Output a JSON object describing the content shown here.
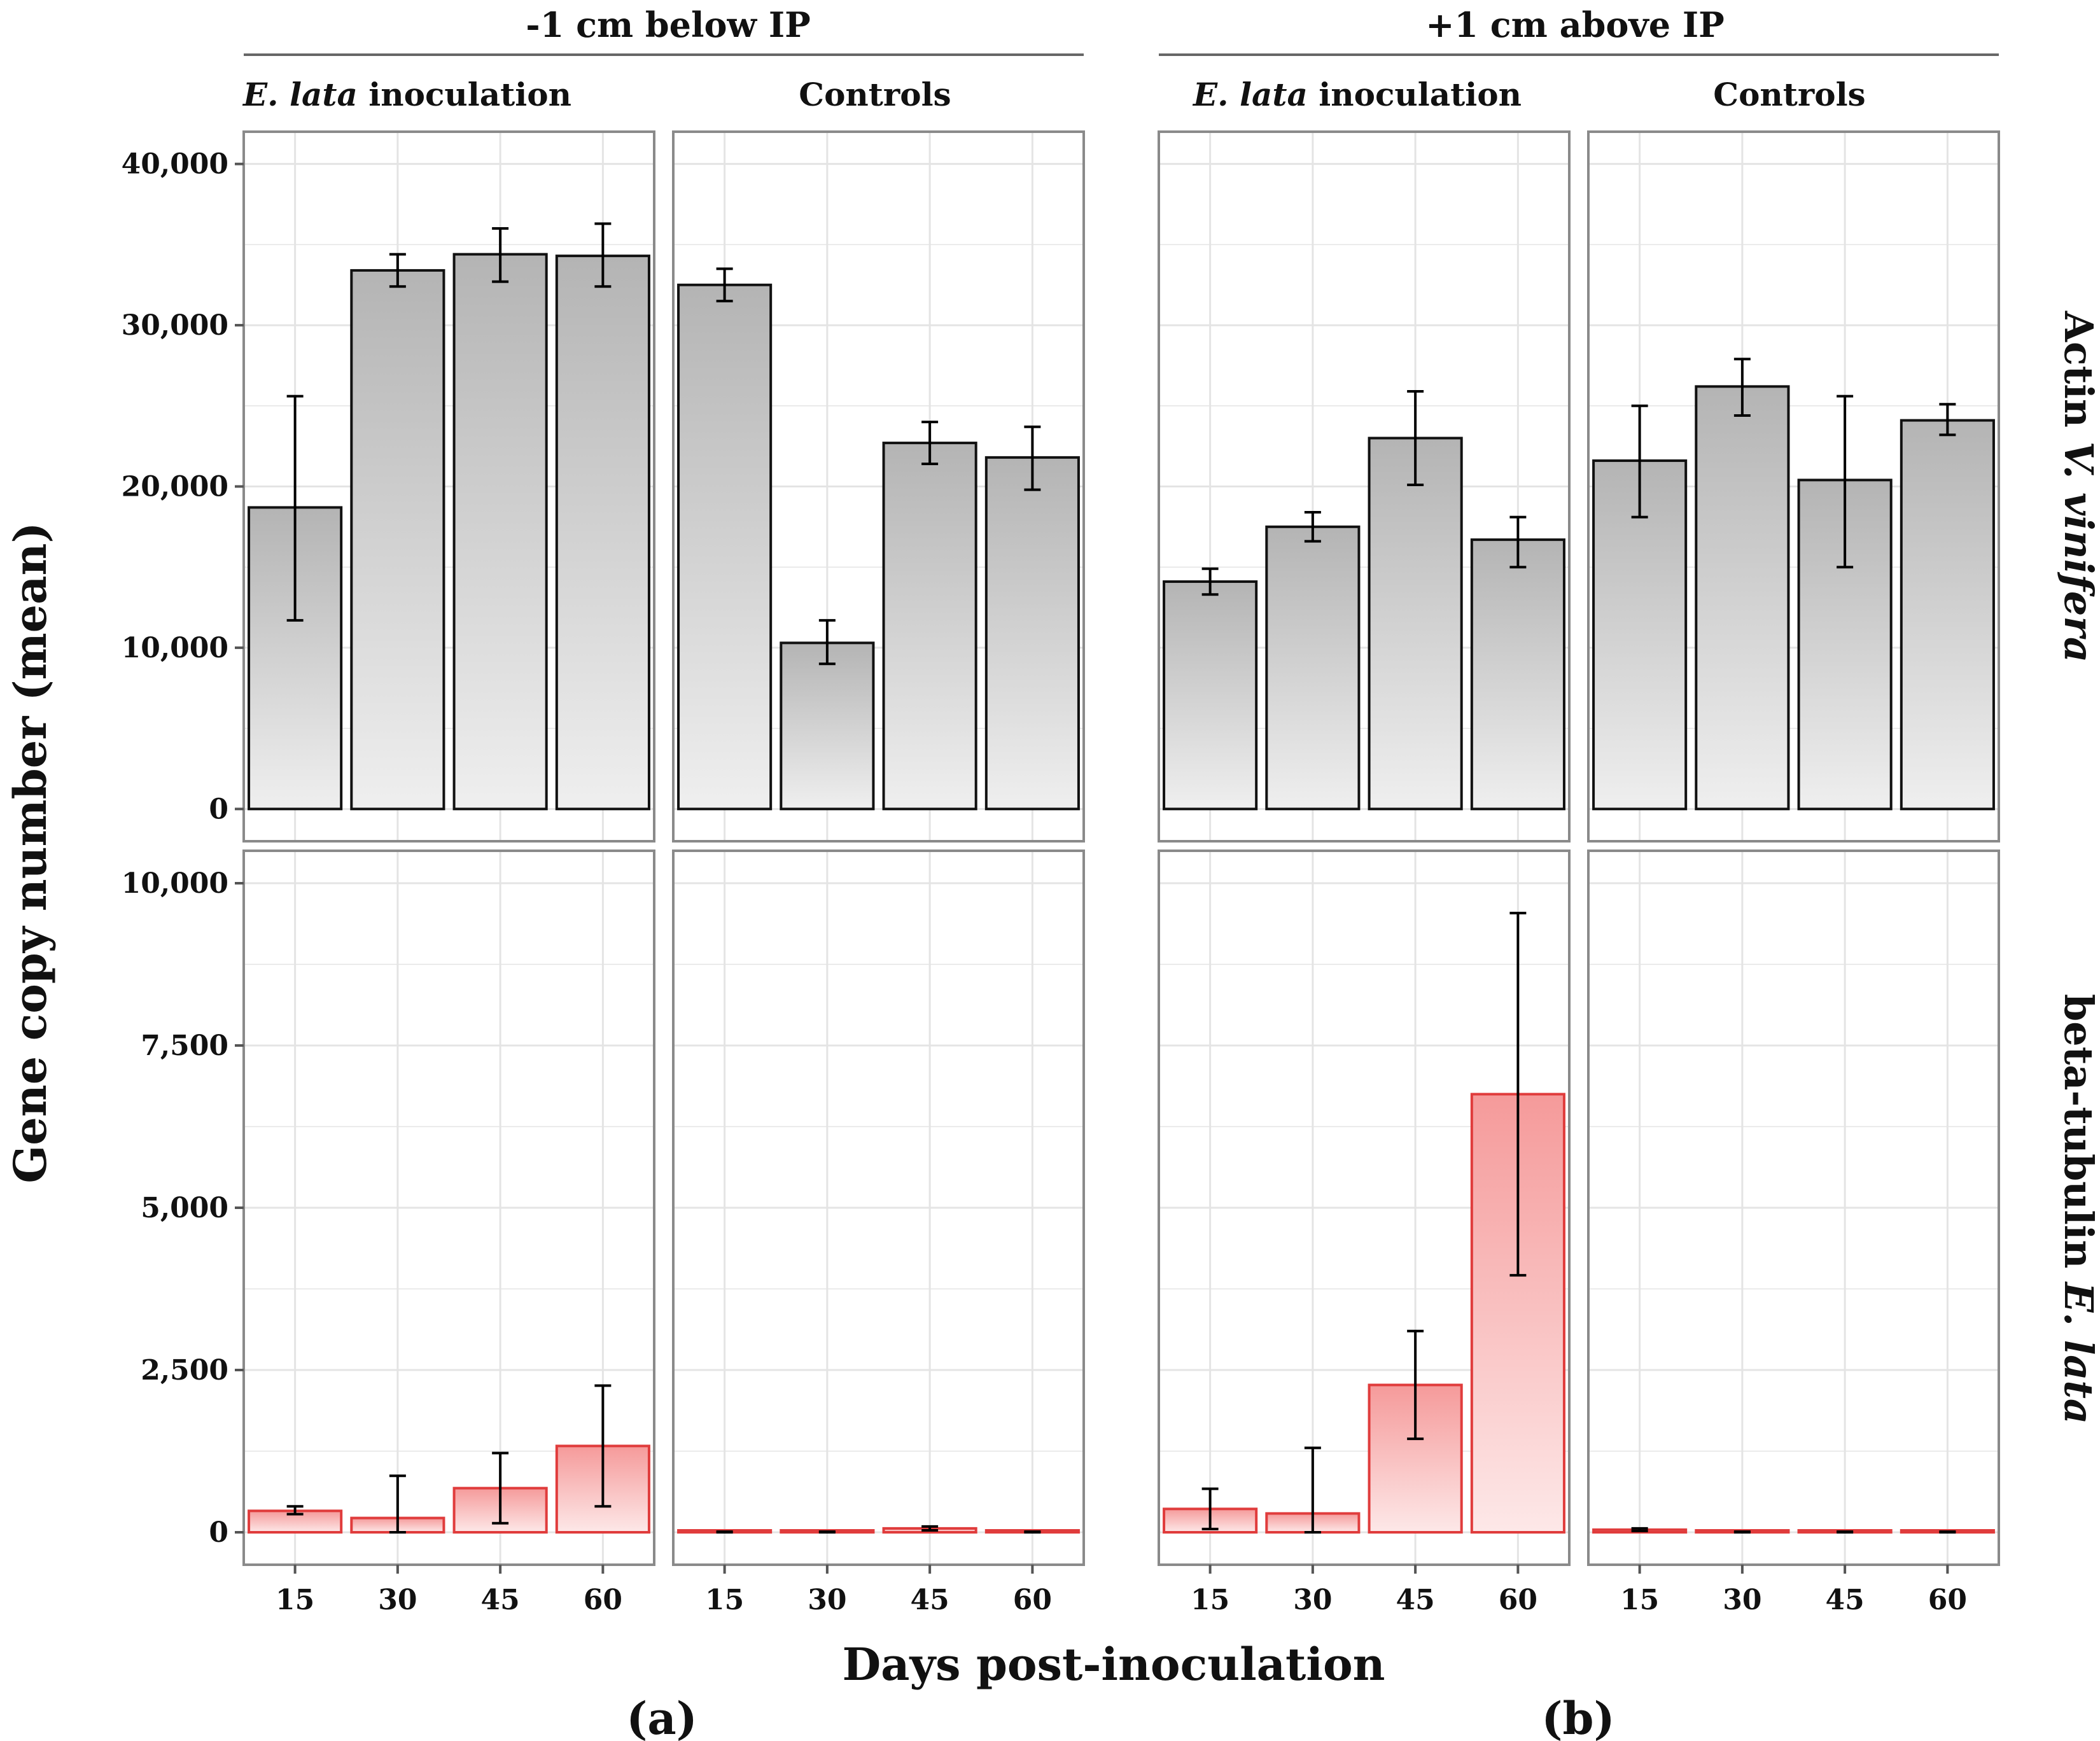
{
  "figure": {
    "ylabel": "Gene copy number (mean)",
    "xlabel": "Days post-inoculation",
    "group_labels": [
      "-1 cm below IP",
      "+1 cm above IP"
    ],
    "panel_tags": [
      {
        "open": "(",
        "letter": "a",
        "close": ")"
      },
      {
        "open": "(",
        "letter": "b",
        "close": ")"
      }
    ],
    "column_labels": [
      {
        "italic": "E. lata",
        "rest": " inoculation"
      },
      {
        "italic": "",
        "rest": "Controls"
      },
      {
        "italic": "E. lata",
        "rest": " inoculation"
      },
      {
        "italic": "",
        "rest": "Controls"
      }
    ],
    "row_labels": [
      {
        "prefix": "Actin ",
        "italic": "V. vinifera"
      },
      {
        "prefix": "beta-tubulin ",
        "italic": "E. lata"
      }
    ],
    "colors": {
      "actin_fill_top": "#b4b4b4",
      "actin_fill_bottom": "#efefef",
      "actin_stroke": "#111111",
      "tubulin_fill_top": "#f59a9a",
      "tubulin_fill_bottom": "#fde8e8",
      "tubulin_stroke": "#e03c3c",
      "panel_border": "#8a8a8a",
      "grid": "#e4e4e4"
    }
  },
  "chart_data": [
    {
      "type": "bar",
      "facet": "Actin V. vinifera | -1 cm below IP | E. lata inoculation",
      "categories": [
        "15",
        "30",
        "45",
        "60"
      ],
      "values": [
        18700,
        33400,
        34400,
        34300
      ],
      "errors": [
        [
          11700,
          25600
        ],
        [
          32400,
          34400
        ],
        [
          32700,
          36000
        ],
        [
          32400,
          36300
        ]
      ],
      "yticks": [
        "0",
        "10,000",
        "20,000",
        "30,000",
        "40,000"
      ],
      "ylim": [
        -2000,
        42000
      ]
    },
    {
      "type": "bar",
      "facet": "Actin V. vinifera | -1 cm below IP | Controls",
      "categories": [
        "15",
        "30",
        "45",
        "60"
      ],
      "values": [
        32500,
        10300,
        22700,
        21800
      ],
      "errors": [
        [
          31500,
          33500
        ],
        [
          9000,
          11700
        ],
        [
          21400,
          24000
        ],
        [
          19800,
          23700
        ]
      ],
      "ylim": [
        -2000,
        42000
      ]
    },
    {
      "type": "bar",
      "facet": "Actin V. vinifera | +1 cm above IP | E. lata inoculation",
      "categories": [
        "15",
        "30",
        "45",
        "60"
      ],
      "values": [
        14100,
        17500,
        23000,
        16700
      ],
      "errors": [
        [
          13300,
          14900
        ],
        [
          16600,
          18400
        ],
        [
          20100,
          25900
        ],
        [
          15000,
          18100
        ]
      ],
      "ylim": [
        -2000,
        42000
      ]
    },
    {
      "type": "bar",
      "facet": "Actin V. vinifera | +1 cm above IP | Controls",
      "categories": [
        "15",
        "30",
        "45",
        "60"
      ],
      "values": [
        21600,
        26200,
        20400,
        24100
      ],
      "errors": [
        [
          18100,
          25000
        ],
        [
          24400,
          27900
        ],
        [
          15000,
          25600
        ],
        [
          23200,
          25100
        ]
      ],
      "ylim": [
        -2000,
        42000
      ]
    },
    {
      "type": "bar",
      "facet": "beta-tubulin E. lata | -1 cm below IP | E. lata inoculation",
      "categories": [
        "15",
        "30",
        "45",
        "60"
      ],
      "values": [
        330,
        220,
        680,
        1330
      ],
      "errors": [
        [
          280,
          400
        ],
        [
          0,
          870
        ],
        [
          140,
          1220
        ],
        [
          400,
          2260
        ]
      ],
      "yticks": [
        "0",
        "2,500",
        "5,000",
        "7,500",
        "10,000"
      ],
      "ylim": [
        -500,
        10500
      ]
    },
    {
      "type": "bar",
      "facet": "beta-tubulin E. lata | -1 cm below IP | Controls",
      "categories": [
        "15",
        "30",
        "45",
        "60"
      ],
      "values": [
        5,
        5,
        60,
        5
      ],
      "errors": [
        [
          0,
          10
        ],
        [
          0,
          10
        ],
        [
          30,
          90
        ],
        [
          0,
          10
        ]
      ],
      "ylim": [
        -500,
        10500
      ]
    },
    {
      "type": "bar",
      "facet": "beta-tubulin E. lata | +1 cm above IP | E. lata inoculation",
      "categories": [
        "15",
        "30",
        "45",
        "60"
      ],
      "values": [
        360,
        290,
        2270,
        6750
      ],
      "errors": [
        [
          50,
          670
        ],
        [
          0,
          1300
        ],
        [
          1440,
          3100
        ],
        [
          3960,
          9540
        ]
      ],
      "ylim": [
        -500,
        10500
      ]
    },
    {
      "type": "bar",
      "facet": "beta-tubulin E. lata | +1 cm above IP | Controls",
      "categories": [
        "15",
        "30",
        "45",
        "60"
      ],
      "values": [
        40,
        5,
        5,
        5
      ],
      "errors": [
        [
          20,
          60
        ],
        [
          0,
          10
        ],
        [
          0,
          10
        ],
        [
          0,
          10
        ]
      ],
      "ylim": [
        -500,
        10500
      ]
    }
  ]
}
